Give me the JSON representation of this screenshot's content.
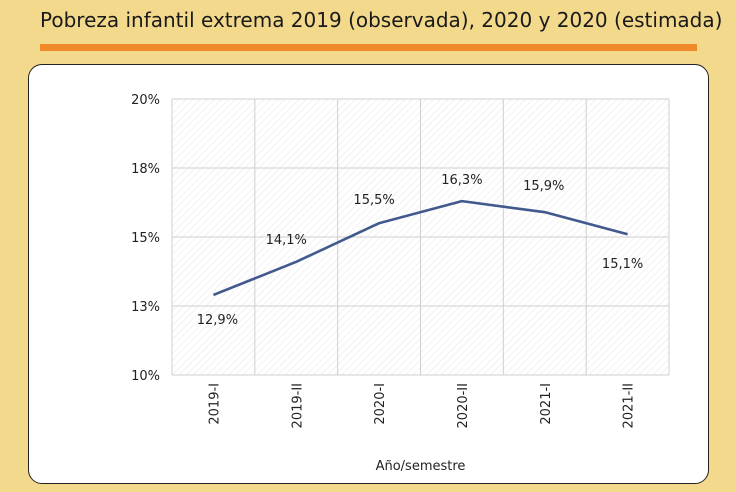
{
  "title": "Pobreza infantil extrema 2019 (observada), 2020 y 2020 (estimada)",
  "chart_data": {
    "type": "line",
    "title": "Pobreza infantil extrema 2019 (observada), 2020 y 2020 (estimada)",
    "xlabel": "Año/semestre",
    "ylabel": "",
    "categories": [
      "2019-I",
      "2019-II",
      "2020-I",
      "2020-II",
      "2021-I",
      "2021-II"
    ],
    "series": [
      {
        "name": "Pobreza infantil extrema",
        "values": [
          12.9,
          14.1,
          15.5,
          16.3,
          15.9,
          15.1
        ],
        "labels": [
          "12,9%",
          "14,1%",
          "15,5%",
          "16,3%",
          "15,9%",
          "15,1%"
        ]
      }
    ],
    "ylim": [
      10,
      20
    ],
    "yticks": [
      10,
      12.5,
      15,
      17.5,
      20
    ],
    "ytick_labels": [
      "10%",
      "13%",
      "15%",
      "18%",
      "20%"
    ],
    "grid": true,
    "colors": {
      "line": "#41598c",
      "grid": "#cfcfcf",
      "background": "#f2d98c",
      "accent": "#f0892a"
    }
  }
}
